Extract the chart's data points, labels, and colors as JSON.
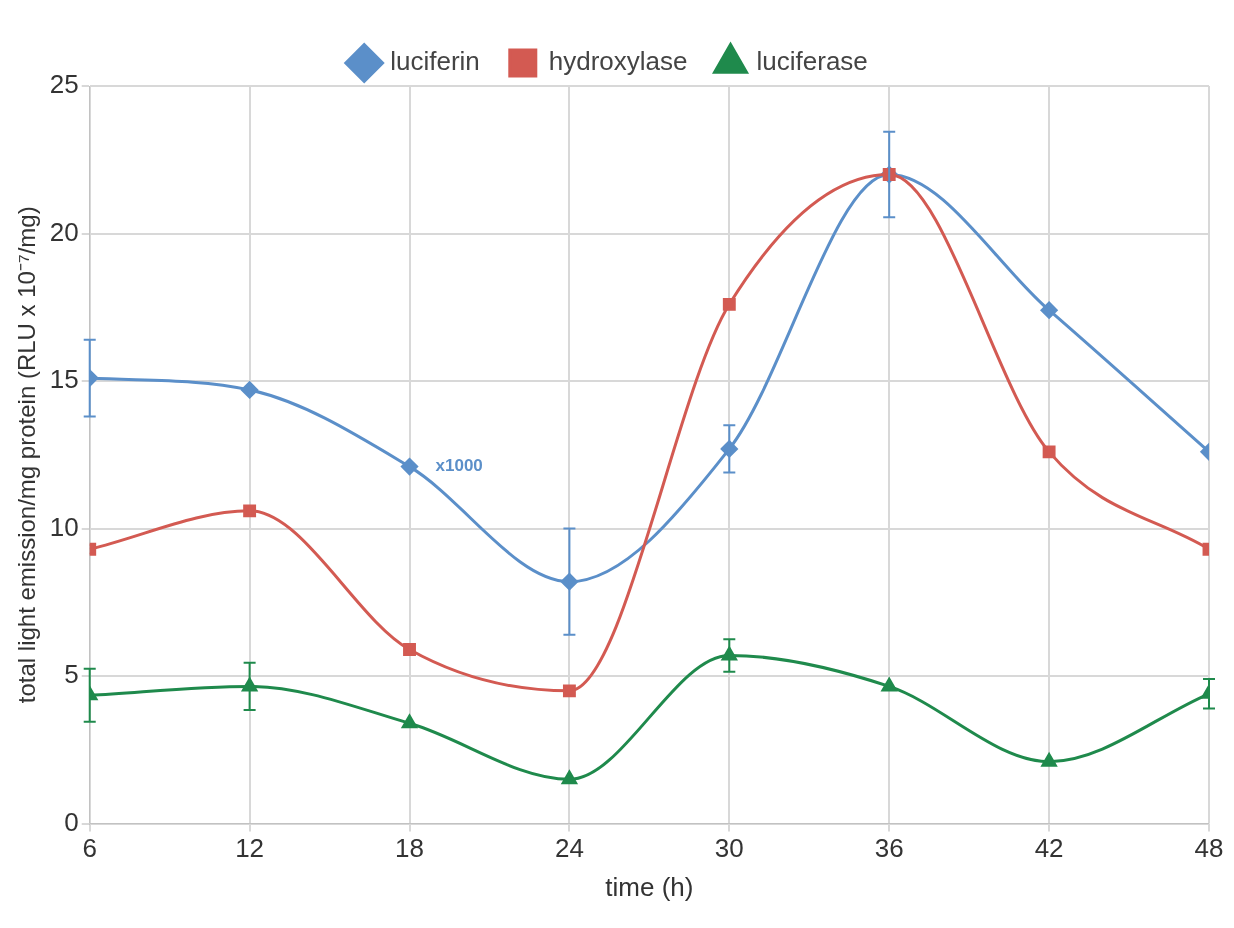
{
  "chart_data": {
    "type": "line",
    "xlabel": "time (h)",
    "ylabel": "total light emission/mg protein (RLU x 10⁻⁷/mg)",
    "x": [
      6,
      12,
      18,
      24,
      30,
      36,
      42,
      48
    ],
    "xlim": [
      6,
      48
    ],
    "xticks": [
      6,
      12,
      18,
      24,
      30,
      36,
      42,
      48
    ],
    "ylim": [
      0,
      25
    ],
    "yticks": [
      0,
      5,
      10,
      15,
      20,
      25
    ],
    "grid": true,
    "legend": "top",
    "series": [
      {
        "name": "luciferin",
        "color": "#5b8fc9",
        "marker": "diamond",
        "values": [
          15.1,
          14.7,
          12.1,
          8.2,
          12.7,
          22.0,
          17.4,
          12.6
        ],
        "errors": [
          1.3,
          null,
          null,
          1.8,
          0.8,
          1.45,
          null,
          null
        ]
      },
      {
        "name": "hydroxylase",
        "color": "#d35a52",
        "marker": "square",
        "values": [
          9.3,
          10.6,
          5.9,
          4.5,
          17.6,
          22.0,
          12.6,
          9.3
        ]
      },
      {
        "name": "luciferase",
        "color": "#1f8a4c",
        "marker": "triangle",
        "values": [
          4.35,
          4.65,
          3.4,
          1.5,
          5.7,
          4.65,
          2.1,
          4.4
        ],
        "errors": [
          0.9,
          0.8,
          null,
          null,
          0.55,
          null,
          null,
          0.5
        ]
      }
    ],
    "annotations": [
      {
        "text": "x1000",
        "x": 18,
        "y": 12.1
      }
    ]
  }
}
